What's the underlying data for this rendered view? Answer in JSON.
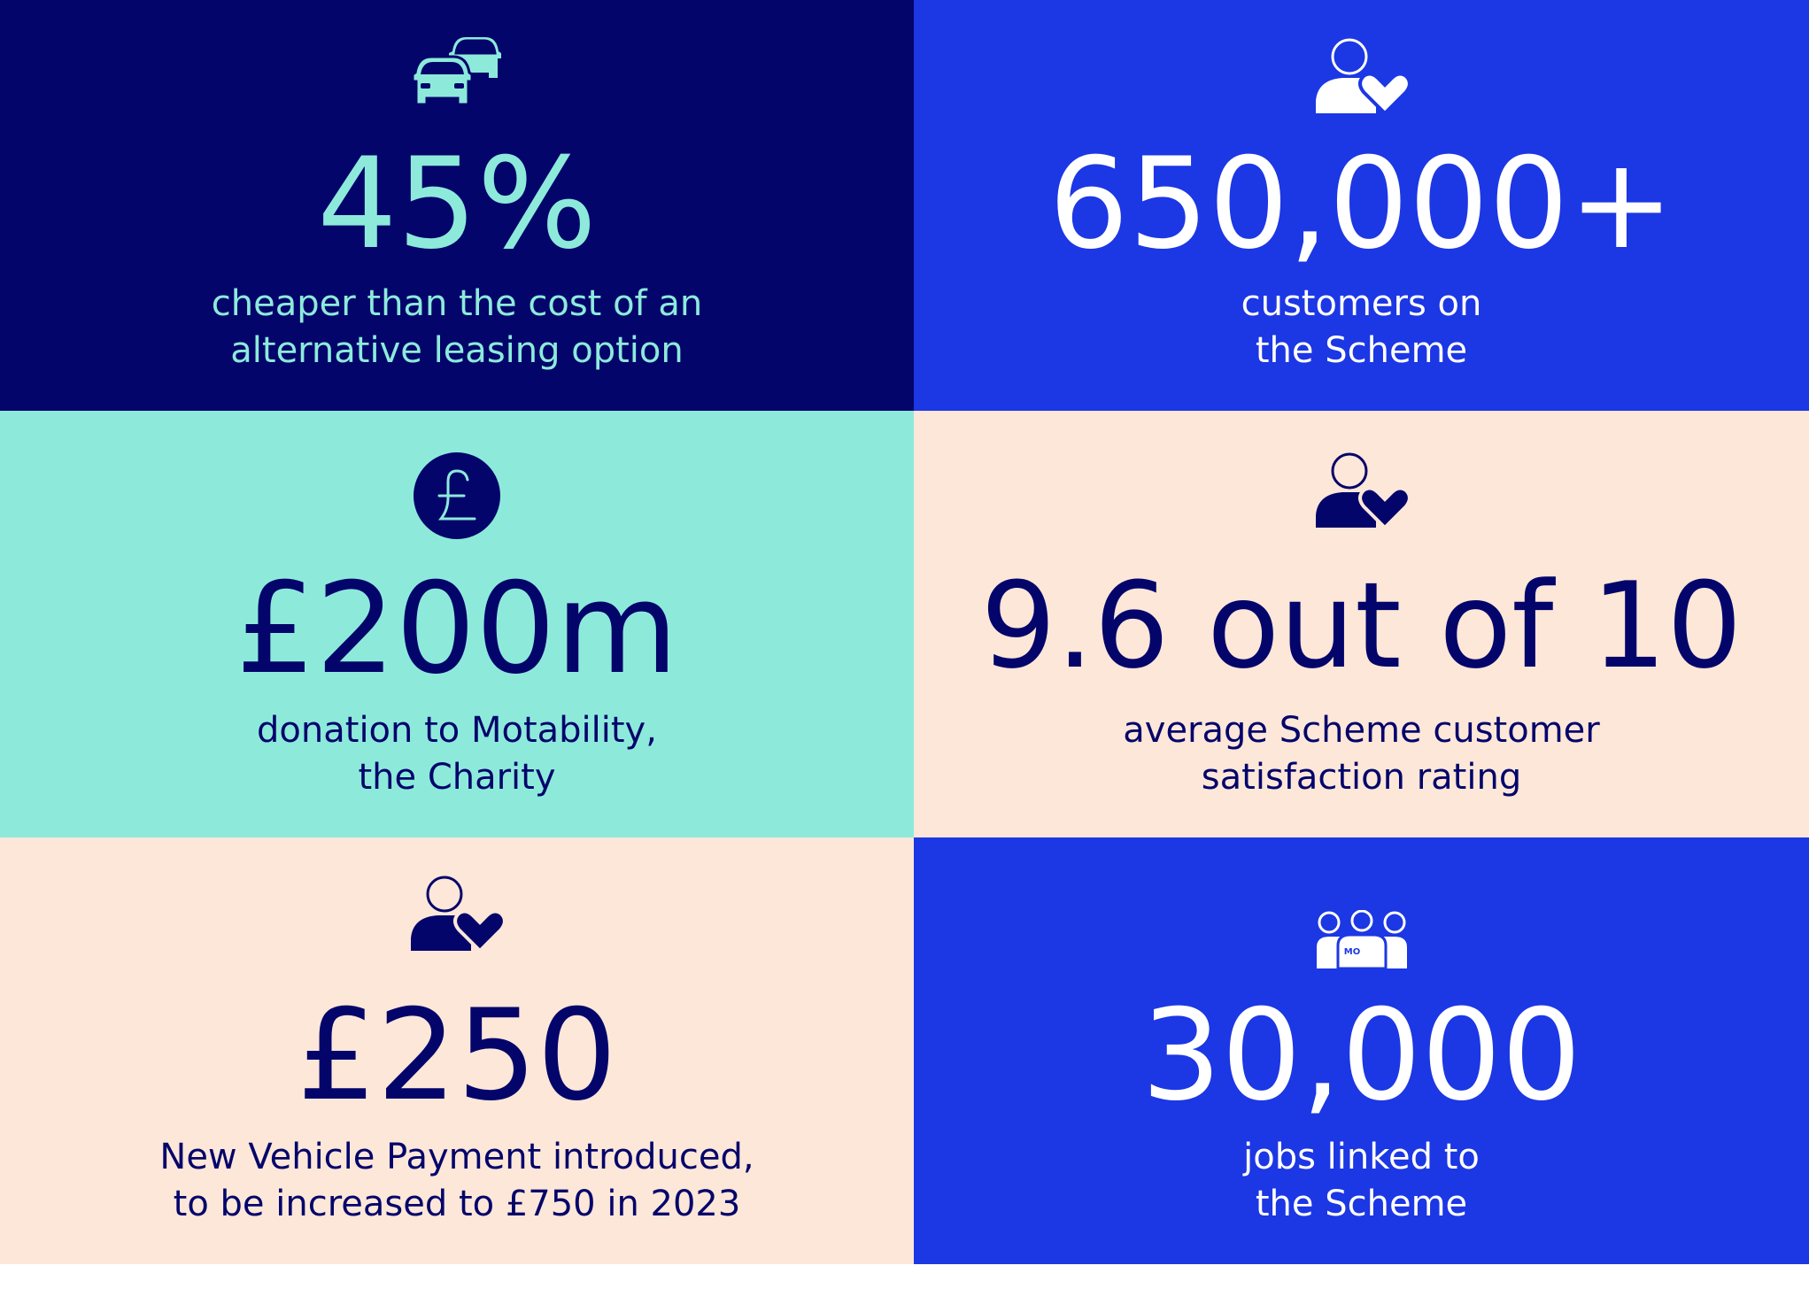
{
  "colors": {
    "navy": "#04056b",
    "blue": "#1c37e4",
    "mint": "#8deadb",
    "peach": "#fde7d8",
    "white": "#ffffff"
  },
  "tiles": [
    {
      "icon": "cars-icon",
      "stat": "45%",
      "caption": [
        "cheaper than the cost of an",
        "alternative leasing option"
      ]
    },
    {
      "icon": "person-heart-icon",
      "stat": "650,000+",
      "caption": [
        "customers on",
        "the Scheme"
      ]
    },
    {
      "icon": "pound-coin-icon",
      "stat": "£200m",
      "caption": [
        "donation to Motability,",
        "the Charity"
      ]
    },
    {
      "icon": "person-heart-icon",
      "stat": "9.6 out of 10",
      "caption": [
        "average Scheme customer",
        "satisfaction rating"
      ]
    },
    {
      "icon": "person-heart-icon",
      "stat": "£250",
      "caption": [
        "New Vehicle Payment introduced,",
        "to be increased to £750 in 2023"
      ]
    },
    {
      "icon": "team-icon",
      "icon_label": "MO",
      "stat": "30,000",
      "caption": [
        "jobs linked to",
        "the Scheme"
      ]
    }
  ]
}
